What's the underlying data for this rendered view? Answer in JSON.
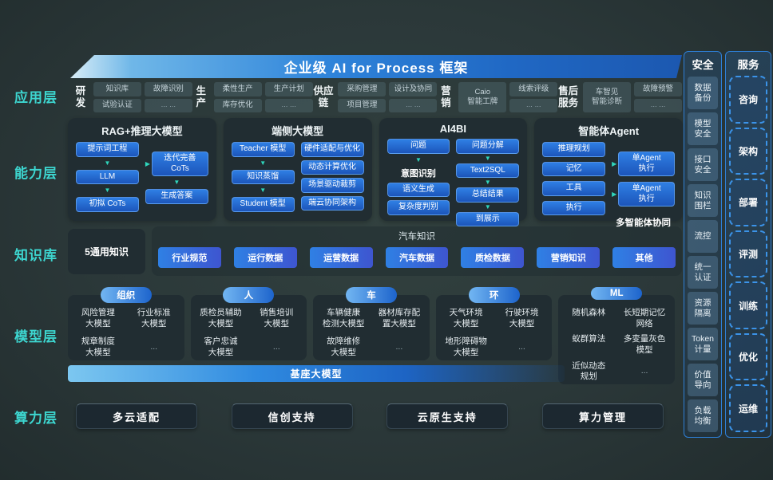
{
  "banner": {
    "title": "企业级 AI for Process 框架"
  },
  "colors": {
    "accent_cyan": "#3dd6d0",
    "chip_blue": "#2f7fe4",
    "arrow_teal": "#2fd6bc",
    "banner_blue": "#2f84da"
  },
  "app_layer": {
    "label": "应用层",
    "groups": [
      {
        "name": "研发",
        "col1": [
          "知识库",
          "试验认证"
        ],
        "col2": [
          "故障识别",
          "... ..."
        ]
      },
      {
        "name": "生产",
        "col1": [
          "柔性生产",
          "库存优化"
        ],
        "col2": [
          "生产计划",
          "... ..."
        ]
      },
      {
        "name": "供应链",
        "col1": [
          "采购管理",
          "项目管理"
        ],
        "col2": [
          "设计及协同",
          "... ..."
        ]
      },
      {
        "name": "营销",
        "col1": [
          "Caio\n智能工牌"
        ],
        "col2": [
          "线索评级",
          "... ..."
        ]
      },
      {
        "name": "售后服务",
        "col1": [
          "车智见\n智能诊断"
        ],
        "col2": [
          "故障预警",
          "... ..."
        ]
      }
    ]
  },
  "capability_layer": {
    "label": "能力层",
    "rag_box": {
      "title": "RAG+推理大模型",
      "flow_left": [
        "提示词工程",
        "LLM",
        "初拟 CoTs"
      ],
      "flow_right": [
        "迭代完善\nCoTs",
        "生成答案"
      ]
    },
    "edge_box": {
      "title": "端侧大模型",
      "flow_left": [
        "Teacher 模型",
        "知识蒸馏",
        "Student 模型"
      ],
      "list_right": [
        "硬件适配与优化",
        "动态计算优化",
        "场景驱动裁剪",
        "端云协同架构"
      ]
    },
    "ai4bi_box": {
      "title": "AI4BI",
      "left": [
        "问题",
        "意图识别",
        "语义生成",
        "复杂度判别"
      ],
      "flow_right": [
        "问题分解",
        "Text2SQL",
        "总结结果",
        "到展示"
      ]
    },
    "agent_box": {
      "title": "智能体Agent",
      "left": [
        "推理规划",
        "记忆",
        "工具",
        "执行"
      ],
      "right": [
        "单Agent\n执行",
        "单Agent\n执行"
      ],
      "note": "多智能体协同"
    }
  },
  "knowledge_layer": {
    "label": "知识库",
    "general": "5通用知识",
    "auto_title": "汽车知识",
    "chips": [
      "行业规范",
      "运行数据",
      "运营数据",
      "汽车数据",
      "质检数据",
      "营销知识",
      "其他"
    ]
  },
  "model_layer": {
    "label": "模型层",
    "groups": [
      {
        "pill": "组织",
        "items": [
          "风险管理\n大模型",
          "行业标准\n大模型",
          "规章制度\n大模型",
          "..."
        ]
      },
      {
        "pill": "人",
        "items": [
          "质检员辅助\n大模型",
          "销售培训\n大模型",
          "客户忠诚\n大模型",
          "..."
        ]
      },
      {
        "pill": "车",
        "items": [
          "车辆健康\n检测大模型",
          "器材库存配\n置大模型",
          "故障维修\n大模型",
          "..."
        ]
      },
      {
        "pill": "环",
        "items": [
          "天气环境\n大模型",
          "行驶环境\n大模型",
          "地形障碍物\n大模型",
          "..."
        ]
      },
      {
        "pill": "ML",
        "items": [
          "随机森林",
          "长短期记忆\n网络",
          "蚁群算法",
          "多变量灰色\n模型",
          "近似动态\n规划",
          "..."
        ]
      }
    ],
    "foundation": "基座大模型"
  },
  "compute_layer": {
    "label": "算力层",
    "items": [
      "多云适配",
      "信创支持",
      "云原生支持",
      "算力管理"
    ]
  },
  "security_column": {
    "title": "安全",
    "items": [
      "数据\n备份",
      "模型\n安全",
      "接口\n安全",
      "知识\n围栏",
      "流控",
      "统一\n认证",
      "资源\n隔离",
      "Token\n计量",
      "价值\n导向",
      "负载\n均衡"
    ]
  },
  "service_column": {
    "title": "服务",
    "items": [
      "咨询",
      "架构",
      "部署",
      "评测",
      "训练",
      "优化",
      "运维"
    ]
  }
}
